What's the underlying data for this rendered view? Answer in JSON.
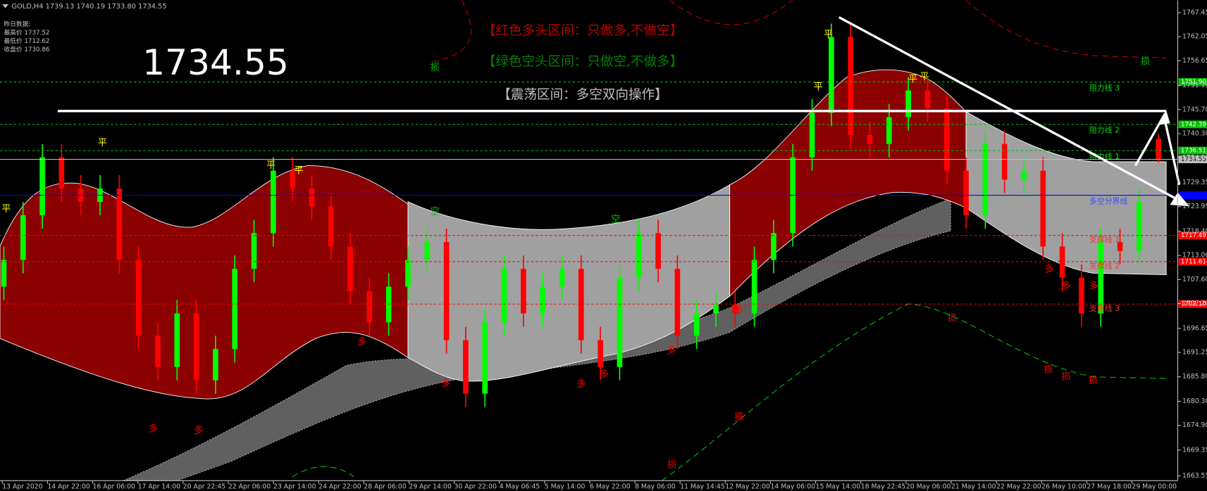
{
  "header": {
    "symbol_line": "GOLD,H4  1739.13 1740.19 1733.80 1734.55"
  },
  "info": {
    "title": "昨日数据:",
    "lines": [
      "最高价 1737.52",
      "最低价 1712.62",
      "收盘价 1730.86"
    ]
  },
  "big_price": "1734.55",
  "annotations": [
    {
      "text": "【红色多头区间：只做多,不做空】",
      "color": "#c00000"
    },
    {
      "text": "【绿色空头区间：只做空,不做多】",
      "color": "#008000"
    },
    {
      "text": "【震荡区间：多空双向操作】",
      "color": "#c0c0c0"
    }
  ],
  "chart_data": {
    "type": "candlestick",
    "xtick_labels": [
      "13 Apr 2020",
      "14 Apr 22:00",
      "16 Apr 06:00",
      "17 Apr 14:00",
      "20 Apr 22:45",
      "22 Apr 06:00",
      "23 Apr 14:00",
      "24 Apr 22:00",
      "28 Apr 06:00",
      "29 Apr 14:00",
      "30 Apr 22:00",
      "4 May 06:45",
      "5 May 14:00",
      "6 May 22:00",
      "8 May 06:00",
      "11 May 14:45",
      "12 May 22:00",
      "14 May 06:00",
      "15 May 14:00",
      "18 May 22:45",
      "20 May 06:00",
      "21 May 14:00",
      "22 May 22:00",
      "26 May 10:00",
      "27 May 18:00",
      "29 May 00:00"
    ],
    "open": [
      1706,
      1712,
      1722,
      1735,
      1728,
      1725,
      1728,
      1712,
      1695,
      1688,
      1700,
      1685,
      1692,
      1710,
      1718,
      1732,
      1728,
      1724,
      1715,
      1705,
      1698,
      1706,
      1712,
      1716,
      1694,
      1682,
      1698,
      1710,
      1700,
      1706,
      1710,
      1694,
      1688,
      1708,
      1718,
      1710,
      1695,
      1700,
      1702,
      1700,
      1712,
      1718,
      1735,
      1745,
      1762,
      1740,
      1738,
      1744,
      1750,
      1746,
      1732,
      1722,
      1738,
      1730,
      1732,
      1715,
      1708,
      1700,
      1716,
      1714,
      1739.13
    ],
    "high": [
      1715,
      1725,
      1738,
      1738,
      1731,
      1731,
      1731,
      1715,
      1698,
      1703,
      1703,
      1695,
      1713,
      1721,
      1735,
      1735,
      1731,
      1727,
      1718,
      1708,
      1709,
      1715,
      1719,
      1719,
      1697,
      1701,
      1713,
      1713,
      1709,
      1713,
      1713,
      1697,
      1711,
      1721,
      1721,
      1713,
      1703,
      1705,
      1705,
      1715,
      1721,
      1738,
      1748,
      1765,
      1765,
      1743,
      1747,
      1753,
      1753,
      1749,
      1735,
      1741,
      1741,
      1735,
      1735,
      1718,
      1711,
      1719,
      1719,
      1728,
      1740.19
    ],
    "low": [
      1703,
      1709,
      1719,
      1725,
      1722,
      1722,
      1709,
      1692,
      1685,
      1685,
      1682,
      1682,
      1689,
      1707,
      1715,
      1725,
      1721,
      1712,
      1702,
      1695,
      1695,
      1703,
      1709,
      1691,
      1679,
      1679,
      1695,
      1697,
      1697,
      1703,
      1691,
      1685,
      1685,
      1705,
      1707,
      1692,
      1692,
      1697,
      1697,
      1697,
      1709,
      1715,
      1732,
      1742,
      1737,
      1735,
      1735,
      1741,
      1743,
      1729,
      1719,
      1719,
      1727,
      1727,
      1712,
      1705,
      1697,
      1697,
      1711,
      1711,
      1733.8
    ],
    "close": [
      1712,
      1722,
      1735,
      1728,
      1725,
      1728,
      1712,
      1695,
      1688,
      1700,
      1685,
      1692,
      1710,
      1718,
      1732,
      1728,
      1724,
      1715,
      1705,
      1698,
      1706,
      1712,
      1716,
      1694,
      1682,
      1698,
      1710,
      1700,
      1706,
      1710,
      1694,
      1688,
      1708,
      1718,
      1710,
      1695,
      1700,
      1702,
      1700,
      1712,
      1718,
      1735,
      1745,
      1762,
      1740,
      1738,
      1744,
      1750,
      1746,
      1732,
      1722,
      1738,
      1730,
      1732,
      1715,
      1708,
      1700,
      1716,
      1714,
      1725,
      1734.55
    ],
    "up_color": "#00ff00",
    "down_color": "#ff0000",
    "ylim": [
      1662.5,
      1770.2
    ],
    "yticks": [
      1767.45,
      1762.05,
      1756.65,
      {
        "value": 1751.1,
        "label": "1751.10"
      },
      {
        "value": 1745.7,
        "label": "1745.70"
      },
      {
        "value": 1740.3,
        "label": "1740.30"
      },
      {
        "value": 1734.9,
        "label": "1734.90"
      },
      1729.35,
      1723.95,
      {
        "value": 1718.4,
        "label": "1718.40"
      },
      {
        "value": 1713,
        "label": "1713.00"
      },
      {
        "value": 1707.6,
        "label": "1707.60"
      },
      {
        "value": 1702.2,
        "label": "1702.20"
      },
      1696.65,
      1691.25,
      {
        "value": 1685.8,
        "label": "1685.80"
      },
      {
        "value": 1680.3,
        "label": "1680.30"
      },
      {
        "value": 1674.9,
        "label": "1674.90"
      },
      1669.35,
      1663.55
    ],
    "levels": [
      {
        "value": 1751.9,
        "label": "1751.90",
        "name": "阻力线 3",
        "color": "#00c000"
      },
      {
        "value": 1742.39,
        "label": "1742.39",
        "name": "阻力线 2",
        "color": "#00c000"
      },
      {
        "value": 1736.51,
        "label": "1736.51",
        "name": "阻力线 1",
        "color": "#00c000"
      },
      {
        "value": 1734.55,
        "label": "1734.55",
        "color": "#c0c0c0"
      },
      {
        "value": 1726.5,
        "name": "多空分界线",
        "color": "#0000ff"
      },
      {
        "value": 1717.49,
        "label": "1717.49",
        "name": "支撑线 1",
        "color": "#ff0000"
      },
      {
        "value": 1711.61,
        "label": "1711.61",
        "name": "支撑线 2",
        "color": "#ff0000"
      },
      {
        "value": 1702.1,
        "label": "1702.10",
        "name": "支撑线 3",
        "color": "#ff0000"
      }
    ],
    "markers": [
      {
        "text": "平",
        "color": "#ffff00"
      },
      {
        "text": "平",
        "color": "#ffff00"
      },
      {
        "text": "平",
        "color": "#ffff00"
      },
      {
        "text": "平",
        "color": "#ffff00"
      },
      {
        "text": "平",
        "color": "#ffff00"
      },
      {
        "text": "平",
        "color": "#ffff00"
      },
      {
        "text": "平",
        "color": "#ffff00"
      },
      {
        "text": "平",
        "color": "#ffff00"
      },
      {
        "text": "多",
        "color": "#ff0000"
      },
      {
        "text": "多",
        "color": "#ff0000"
      },
      {
        "text": "多",
        "color": "#ff0000"
      },
      {
        "text": "多",
        "color": "#ff0000"
      },
      {
        "text": "多",
        "color": "#ff0000"
      },
      {
        "text": "多",
        "color": "#ff0000"
      },
      {
        "text": "多",
        "color": "#ff0000"
      },
      {
        "text": "多",
        "color": "#ff0000"
      },
      {
        "text": "多",
        "color": "#ff0000"
      },
      {
        "text": "多",
        "color": "#ff0000"
      },
      {
        "text": "多",
        "color": "#ff0000"
      },
      {
        "text": "损",
        "color": "#00c000"
      },
      {
        "text": "损",
        "color": "#00c000"
      },
      {
        "text": "损",
        "color": "#ff0000"
      },
      {
        "text": "损",
        "color": "#ff0000"
      },
      {
        "text": "损",
        "color": "#ff0000"
      },
      {
        "text": "损",
        "color": "#ff0000"
      },
      {
        "text": "损",
        "color": "#ff0000"
      },
      {
        "text": "损",
        "color": "#ff0000"
      },
      {
        "text": "空",
        "color": "#00c000"
      },
      {
        "text": "空",
        "color": "#00c000"
      }
    ]
  }
}
